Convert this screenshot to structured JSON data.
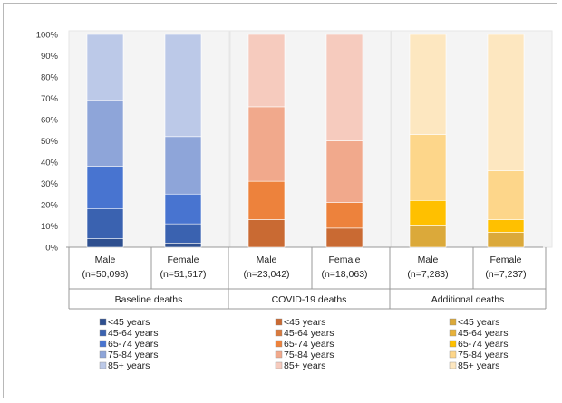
{
  "chart_data": {
    "type": "bar",
    "stacked": true,
    "percent": true,
    "y_ticks": [
      "0%",
      "10%",
      "20%",
      "30%",
      "40%",
      "50%",
      "60%",
      "70%",
      "80%",
      "90%",
      "100%"
    ],
    "ylim": [
      0,
      100
    ],
    "age_bands": [
      "<45 years",
      "45-64 years",
      "65-74 years",
      "75-84 years",
      "85+ years"
    ],
    "groups": [
      {
        "name": "Baseline deaths",
        "colors": [
          "#2e4f8f",
          "#3a62b0",
          "#4874d0",
          "#8ea5d9",
          "#bcc9e8"
        ],
        "bars": [
          {
            "label": "Male",
            "sublabel": "(n=50,098)",
            "values": [
              4,
              14,
              20,
              31,
              31
            ]
          },
          {
            "label": "Female",
            "sublabel": "(n=51,517)",
            "values": [
              2,
              9,
              14,
              27,
              48
            ]
          }
        ]
      },
      {
        "name": "COVID-19 deaths",
        "colors": [
          "#c96a33",
          "#d87a3e",
          "#ed823c",
          "#f1a98c",
          "#f6cbbe"
        ],
        "bars": [
          {
            "label": "Male",
            "sublabel": "(n=23,042)",
            "values": [
              13,
              0,
              18,
              35,
              34
            ]
          },
          {
            "label": "Female",
            "sublabel": "(n=18,063)",
            "values": [
              9,
              0,
              12,
              29,
              50
            ]
          }
        ]
      },
      {
        "name": "Additional deaths",
        "colors": [
          "#dba93a",
          "#e8b23a",
          "#ffc000",
          "#fdd68a",
          "#fde7c0"
        ],
        "bars": [
          {
            "label": "Male",
            "sublabel": "(n=7,283)",
            "values": [
              10,
              0,
              12,
              31,
              47
            ]
          },
          {
            "label": "Female",
            "sublabel": "(n=7,237)",
            "values": [
              7,
              0,
              6,
              23,
              64
            ]
          }
        ]
      }
    ]
  }
}
